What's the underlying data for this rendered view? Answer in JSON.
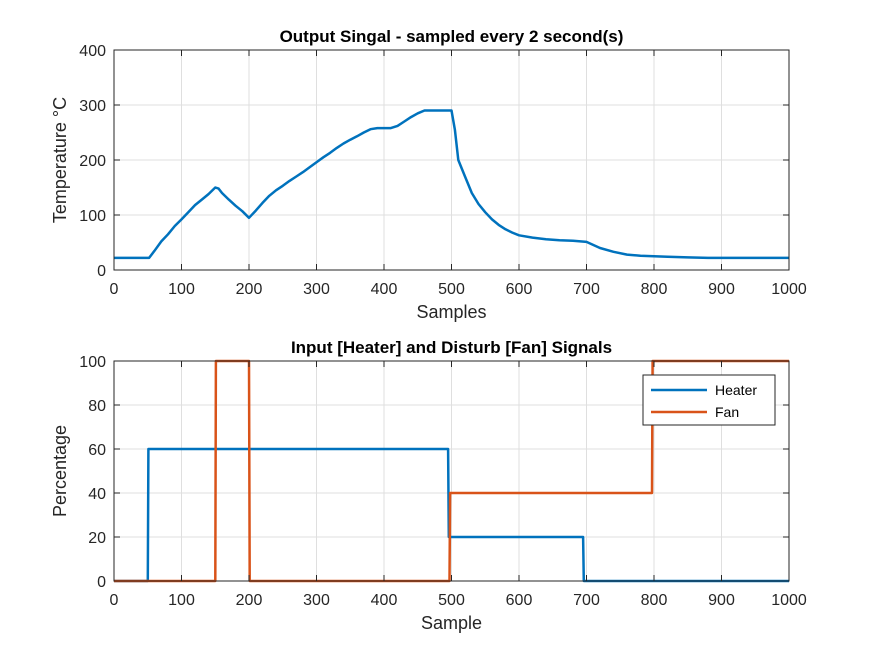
{
  "colors": {
    "heater": "#0072BD",
    "fan": "#D95319",
    "grid": "#DFDFDF",
    "axis": "#262626",
    "background": "#FFFFFF"
  },
  "chart_data": [
    {
      "type": "line",
      "title": "Output Singal - sampled every 2 second(s)",
      "xlabel": "Samples",
      "ylabel": "Temperature °C",
      "xlim": [
        0,
        1000
      ],
      "ylim": [
        0,
        400
      ],
      "xticks": [
        "0",
        "100",
        "200",
        "300",
        "400",
        "500",
        "600",
        "700",
        "800",
        "900",
        "1000"
      ],
      "yticks": [
        "0",
        "100",
        "200",
        "300",
        "400"
      ],
      "grid": true,
      "series": [
        {
          "color": "#0072BD",
          "x": [
            0,
            10,
            30,
            52,
            60,
            70,
            80,
            90,
            100,
            110,
            120,
            130,
            140,
            150,
            155,
            160,
            170,
            180,
            190,
            200,
            210,
            220,
            230,
            240,
            250,
            260,
            270,
            280,
            290,
            300,
            310,
            320,
            330,
            340,
            350,
            360,
            370,
            380,
            390,
            400,
            410,
            420,
            430,
            440,
            450,
            460,
            470,
            480,
            490,
            500,
            505,
            510,
            520,
            530,
            540,
            550,
            560,
            570,
            580,
            590,
            600,
            620,
            640,
            660,
            680,
            700,
            720,
            740,
            760,
            780,
            800,
            820,
            850,
            880,
            900,
            950,
            1000
          ],
          "y": [
            22,
            22,
            22,
            22,
            35,
            52,
            65,
            80,
            92,
            105,
            118,
            128,
            138,
            150,
            148,
            140,
            128,
            117,
            107,
            95,
            108,
            122,
            135,
            145,
            153,
            162,
            170,
            178,
            187,
            196,
            205,
            213,
            222,
            230,
            237,
            243,
            250,
            256,
            258,
            258,
            258,
            262,
            270,
            278,
            285,
            290,
            290,
            290,
            290,
            290,
            255,
            200,
            170,
            140,
            120,
            105,
            92,
            82,
            74,
            68,
            63,
            59,
            56,
            54,
            53,
            51,
            40,
            33,
            28,
            26,
            25,
            24,
            23,
            22,
            22,
            22,
            22
          ]
        }
      ]
    },
    {
      "type": "line",
      "title": "Input [Heater] and Disturb [Fan] Signals",
      "xlabel": "Sample",
      "ylabel": "Percentage",
      "xlim": [
        0,
        1000
      ],
      "ylim": [
        0,
        100
      ],
      "xticks": [
        "0",
        "100",
        "200",
        "300",
        "400",
        "500",
        "600",
        "700",
        "800",
        "900",
        "1000"
      ],
      "yticks": [
        "0",
        "20",
        "40",
        "60",
        "80",
        "100"
      ],
      "grid": true,
      "legend_position": "top-right",
      "series": [
        {
          "name": "Heater",
          "color": "#0072BD",
          "x": [
            0,
            50,
            51,
            495,
            496,
            695,
            696,
            1000
          ],
          "y": [
            0,
            0,
            60,
            60,
            20,
            20,
            0,
            0
          ]
        },
        {
          "name": "Fan",
          "color": "#D95319",
          "x": [
            0,
            150,
            151,
            200,
            201,
            497,
            498,
            797,
            798,
            1000
          ],
          "y": [
            0,
            0,
            100,
            100,
            0,
            0,
            40,
            40,
            100,
            100
          ]
        }
      ]
    }
  ]
}
